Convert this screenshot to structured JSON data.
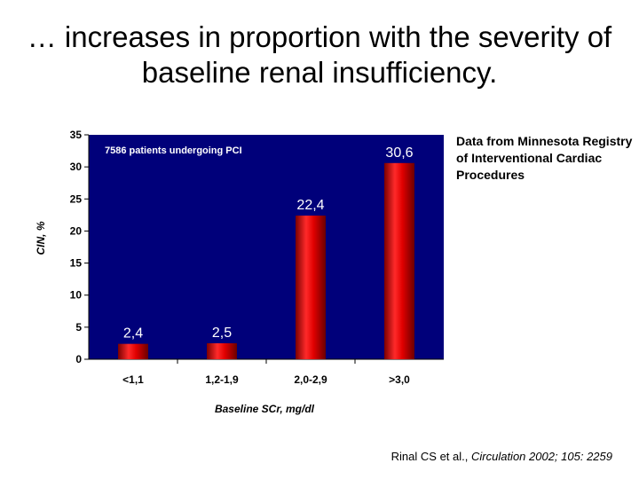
{
  "slide": {
    "title_line1": "… increases in proportion with the severity of",
    "title_line2": "baseline renal insufficiency.",
    "side_note": "Data from Minnesota Registry of Interventional Cardiac Procedures",
    "citation_authors": "Rinal CS et al., ",
    "citation_journal": "Circulation 2002; 105: 2259"
  },
  "colors": {
    "plot_background": "#00007a",
    "bar": "#e00000",
    "data_label": "#ffffff"
  },
  "chart_data": {
    "type": "bar",
    "categories": [
      "<1,1",
      "1,2-1,9",
      "2,0-2,9",
      ">3,0"
    ],
    "values": [
      2.4,
      2.5,
      22.4,
      30.6
    ],
    "value_labels": [
      "2,4",
      "2,5",
      "22,4",
      "30,6"
    ],
    "xlabel": "Baseline SCr, mg/dl",
    "ylabel": "CIN, %",
    "ylim": [
      0,
      35
    ],
    "yticks": [
      "0",
      "5",
      "10",
      "15",
      "20",
      "25",
      "30",
      "35"
    ],
    "annotation": "7586 patients undergoing PCI",
    "grid": false,
    "legend": "none"
  }
}
